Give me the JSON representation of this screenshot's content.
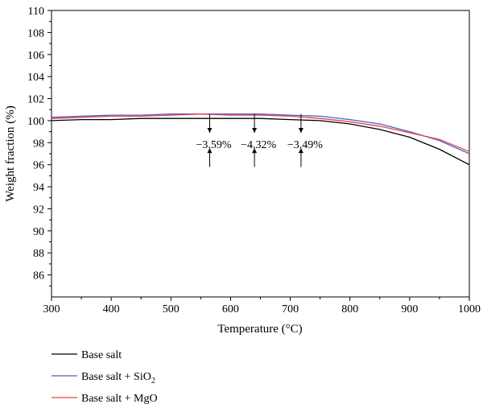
{
  "chart_data": {
    "type": "line",
    "xlabel": "Temperature (°C)",
    "ylabel": "Weight fraction (%)",
    "xlim": [
      300,
      1000
    ],
    "ylim": [
      84,
      110
    ],
    "x_ticks": [
      300,
      400,
      500,
      600,
      700,
      800,
      900,
      1000
    ],
    "y_ticks": [
      86,
      88,
      90,
      92,
      94,
      96,
      98,
      100,
      102,
      104,
      106,
      108,
      110
    ],
    "grid": false,
    "legend_position": "bottom-left, below plot",
    "series": [
      {
        "name": "Base salt",
        "color": "#000000",
        "x": [
          300,
          350,
          400,
          450,
          500,
          550,
          600,
          650,
          700,
          750,
          800,
          850,
          900,
          950,
          1000
        ],
        "y": [
          100.0,
          100.1,
          100.1,
          100.2,
          100.2,
          100.2,
          100.2,
          100.2,
          100.1,
          100.0,
          99.7,
          99.2,
          98.5,
          97.4,
          96.0
        ]
      },
      {
        "name": "Base salt + SiO",
        "name_sub": "2",
        "color": "#4d5fc8",
        "x": [
          300,
          350,
          400,
          450,
          500,
          550,
          600,
          650,
          700,
          750,
          800,
          850,
          900,
          950,
          1000
        ],
        "y": [
          100.3,
          100.4,
          100.5,
          100.5,
          100.6,
          100.6,
          100.6,
          100.6,
          100.5,
          100.4,
          100.1,
          99.7,
          99.0,
          98.2,
          97.0
        ]
      },
      {
        "name": "Base salt + MgO",
        "color": "#e8414b",
        "x": [
          300,
          350,
          400,
          450,
          500,
          550,
          600,
          650,
          700,
          750,
          800,
          850,
          900,
          950,
          1000
        ],
        "y": [
          100.2,
          100.3,
          100.4,
          100.4,
          100.5,
          100.6,
          100.5,
          100.5,
          100.4,
          100.2,
          99.9,
          99.5,
          98.9,
          98.3,
          97.2
        ]
      }
    ],
    "annotations": [
      {
        "label": "−3.59%",
        "x": 565
      },
      {
        "label": "−4.32%",
        "x": 640
      },
      {
        "label": "−3.49%",
        "x": 718
      }
    ]
  }
}
